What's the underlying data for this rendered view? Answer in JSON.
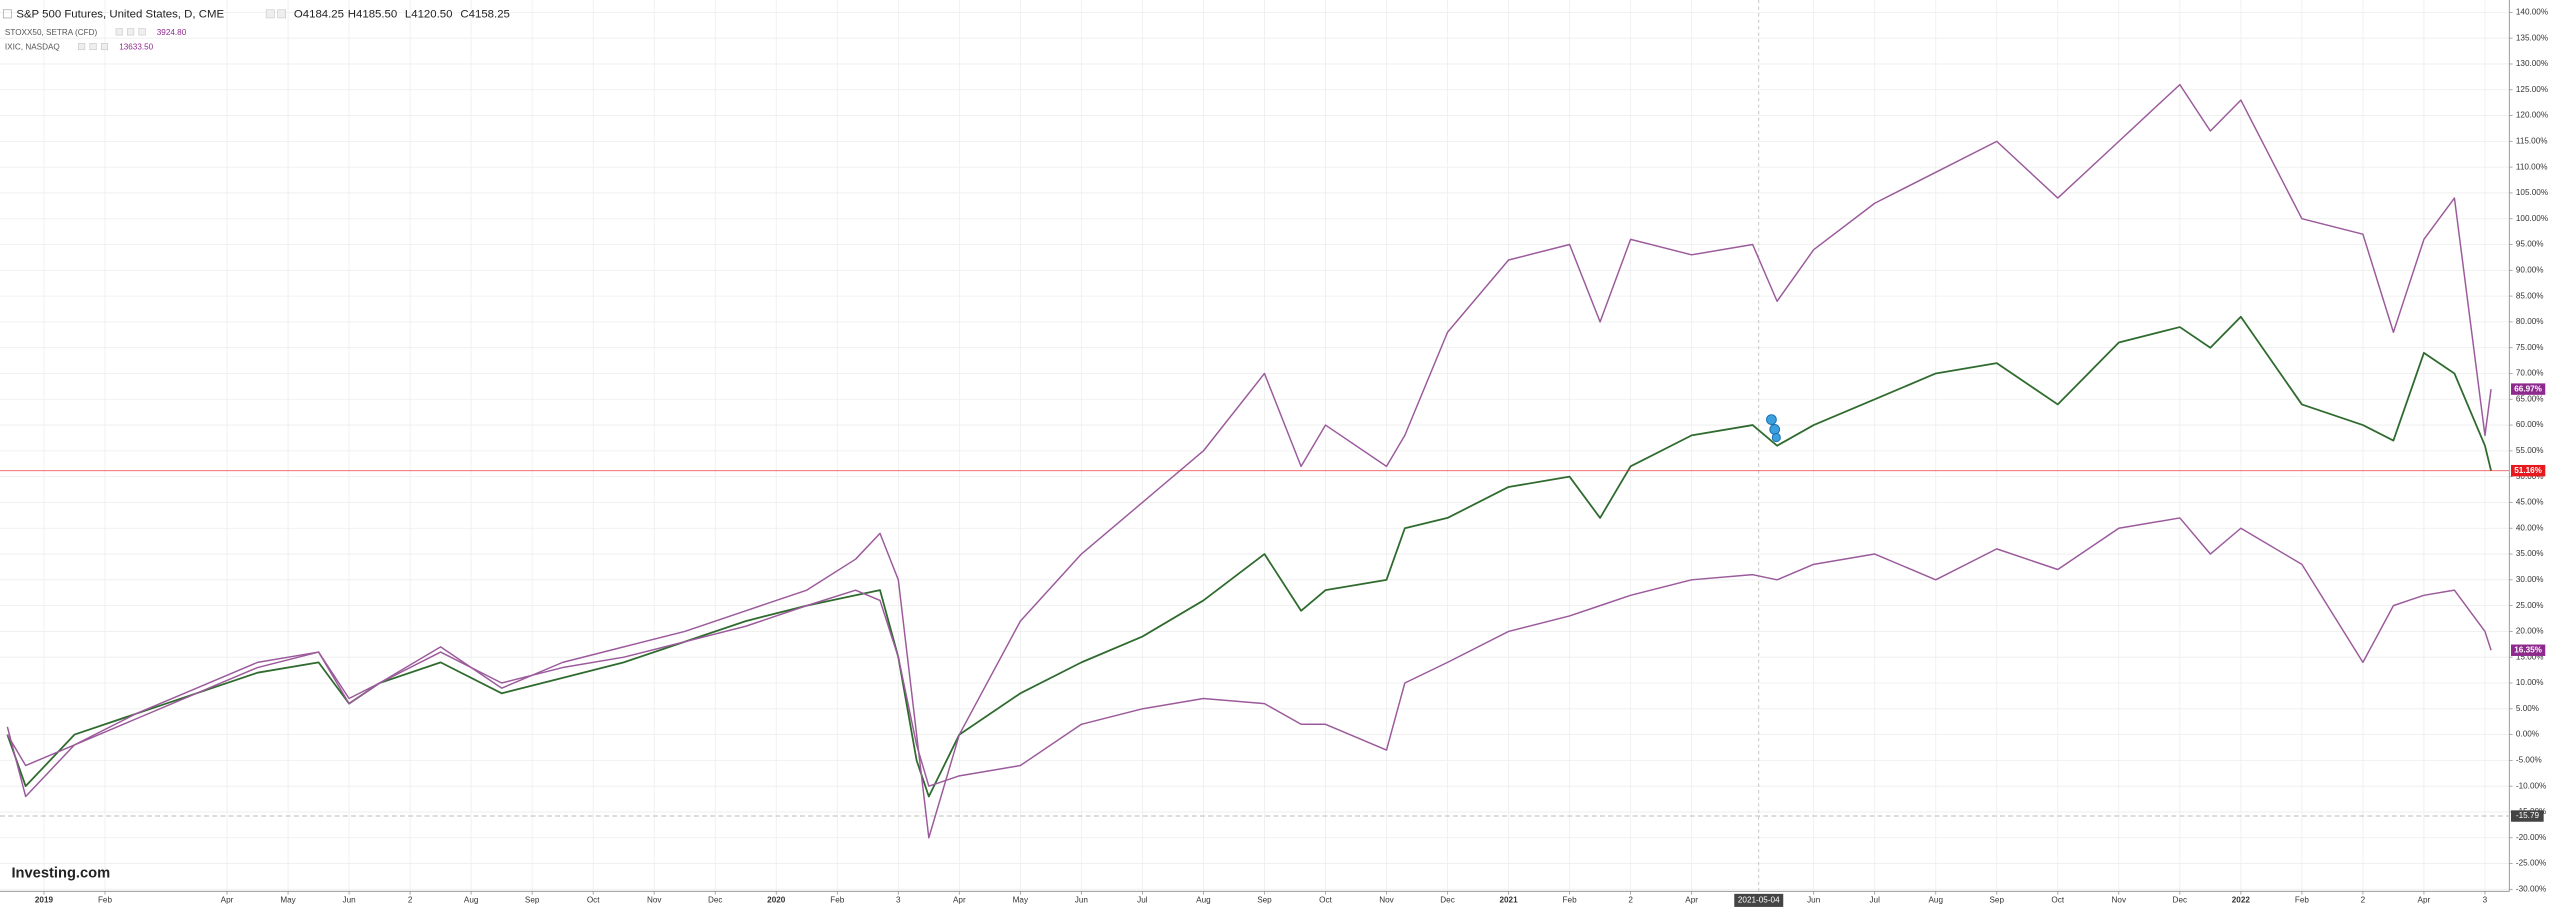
{
  "chart_data": {
    "type": "line",
    "series": [
      {
        "name": "S&P 500 Futures, United States, D, CME",
        "color": "#2f6b2f",
        "values": [
          0,
          -10,
          0,
          4,
          8,
          12,
          14,
          6,
          10,
          14,
          8,
          11,
          14,
          18,
          22,
          25,
          27,
          28,
          15,
          -5,
          -12,
          0,
          8,
          14,
          19,
          26,
          35,
          24,
          28,
          30,
          40,
          42,
          48,
          50,
          42,
          52,
          58,
          60,
          56,
          60,
          65,
          70,
          72,
          64,
          76,
          79,
          75,
          81,
          64,
          60,
          57,
          74,
          70,
          56,
          51.16
        ]
      },
      {
        "name": "STOXX50, SETRA (CFD)",
        "color": "#9b5a9b",
        "values": [
          0,
          -6,
          -2,
          4,
          9,
          14,
          16,
          7,
          10,
          16,
          10,
          13,
          15,
          18,
          21,
          25,
          28,
          26,
          15,
          -2,
          -10,
          -8,
          -6,
          2,
          5,
          7,
          6,
          2,
          2,
          -3,
          10,
          14,
          20,
          23,
          25,
          27,
          30,
          31,
          30,
          33,
          35,
          30,
          36,
          32,
          40,
          42,
          35,
          40,
          33,
          14,
          25,
          27,
          28,
          20,
          16.35
        ]
      },
      {
        "name": "IXIC, NASDAQ",
        "color": "#9b5a9b",
        "values": [
          1.5,
          -12,
          -2,
          3,
          8,
          13,
          16,
          6,
          10,
          17,
          9,
          14,
          17,
          20,
          24,
          28,
          34,
          39,
          30,
          0,
          -20,
          0,
          22,
          35,
          45,
          55,
          70,
          52,
          60,
          52,
          58,
          78,
          92,
          95,
          80,
          96,
          93,
          95,
          84,
          94,
          103,
          109,
          115,
          104,
          115,
          126,
          117,
          123,
          100,
          97,
          78,
          96,
          104,
          58,
          66.97
        ]
      }
    ],
    "x": [
      -0.6,
      -0.3,
      0.5,
      1.5,
      2.5,
      3.5,
      4.5,
      5,
      5.5,
      6.5,
      7.5,
      8.5,
      9.5,
      10.5,
      11.5,
      12.5,
      13.3,
      13.7,
      14.0,
      14.3,
      14.5,
      15,
      16,
      17,
      18,
      19,
      20,
      20.6,
      21,
      22,
      22.3,
      23,
      24,
      25,
      25.5,
      26,
      27,
      28,
      28.4,
      29,
      30,
      31,
      32,
      33,
      34,
      35,
      35.5,
      36,
      37,
      38,
      38.5,
      39,
      39.5,
      40,
      40.1
    ],
    "ohlc": [
      "O4184.25",
      "H4185.50",
      "L4120.50",
      "C4158.25"
    ],
    "last_prices": [
      "3924.80",
      "13633.50"
    ],
    "end_labels": [
      {
        "value": 66.97,
        "label": "66.97%",
        "color": "#8e2a8e"
      },
      {
        "value": 51.16,
        "label": "51.16%",
        "color": "#e8191e"
      },
      {
        "value": 16.35,
        "label": "16.35%",
        "color": "#8e2a8e"
      }
    ],
    "reference_line": {
      "value": -15.79,
      "label": "-15.79"
    },
    "crosshair_x": {
      "value": 28.1,
      "label": "2021-05-04"
    },
    "watermark": "Investing.com",
    "xlim": [
      -0.72,
      40.4
    ],
    "ylim": [
      -30.4,
      142.4
    ],
    "grid": true,
    "xticks": [
      {
        "value": 0,
        "label": "2019"
      },
      {
        "value": 1,
        "label": "Feb"
      },
      {
        "value": 3,
        "label": "Apr"
      },
      {
        "value": 4,
        "label": "May"
      },
      {
        "value": 5,
        "label": "Jun"
      },
      {
        "value": 6,
        "label": "2"
      },
      {
        "value": 7,
        "label": "Aug"
      },
      {
        "value": 8,
        "label": "Sep"
      },
      {
        "value": 9,
        "label": "Oct"
      },
      {
        "value": 10,
        "label": "Nov"
      },
      {
        "value": 11,
        "label": "Dec"
      },
      {
        "value": 12,
        "label": "2020"
      },
      {
        "value": 13,
        "label": "Feb"
      },
      {
        "value": 14,
        "label": "3"
      },
      {
        "value": 15,
        "label": "Apr"
      },
      {
        "value": 16,
        "label": "May"
      },
      {
        "value": 17,
        "label": "Jun"
      },
      {
        "value": 18,
        "label": "Jul"
      },
      {
        "value": 19,
        "label": "Aug"
      },
      {
        "value": 20,
        "label": "Sep"
      },
      {
        "value": 21,
        "label": "Oct"
      },
      {
        "value": 22,
        "label": "Nov"
      },
      {
        "value": 23,
        "label": "Dec"
      },
      {
        "value": 24,
        "label": "2021"
      },
      {
        "value": 25,
        "label": "Feb"
      },
      {
        "value": 26,
        "label": "2"
      },
      {
        "value": 27,
        "label": "Apr"
      },
      {
        "value": 29,
        "label": "Jun"
      },
      {
        "value": 30,
        "label": "Jul"
      },
      {
        "value": 31,
        "label": "Aug"
      },
      {
        "value": 32,
        "label": "Sep"
      },
      {
        "value": 33,
        "label": "Oct"
      },
      {
        "value": 34,
        "label": "Nov"
      },
      {
        "value": 35,
        "label": "Dec"
      },
      {
        "value": 36,
        "label": "2022"
      },
      {
        "value": 37,
        "label": "Feb"
      },
      {
        "value": 38,
        "label": "2"
      },
      {
        "value": 39,
        "label": "Apr"
      },
      {
        "value": 40,
        "label": "3"
      }
    ],
    "yticks": [
      {
        "value": -30,
        "label": "-30.00%"
      },
      {
        "value": -25,
        "label": "-25.00%"
      },
      {
        "value": -20,
        "label": "-20.00%"
      },
      {
        "value": -15,
        "label": "-15.00%"
      },
      {
        "value": -10,
        "label": "-10.00%"
      },
      {
        "value": -5,
        "label": "-5.00%"
      },
      {
        "value": 0,
        "label": "0.00%"
      },
      {
        "value": 5,
        "label": "5.00%"
      },
      {
        "value": 10,
        "label": "10.00%"
      },
      {
        "value": 15,
        "label": "15.00%"
      },
      {
        "value": 20,
        "label": "20.00%"
      },
      {
        "value": 25,
        "label": "25.00%"
      },
      {
        "value": 30,
        "label": "30.00%"
      },
      {
        "value": 35,
        "label": "35.00%"
      },
      {
        "value": 40,
        "label": "40.00%"
      },
      {
        "value": 45,
        "label": "45.00%"
      },
      {
        "value": 50,
        "label": "50.00%"
      },
      {
        "value": 55,
        "label": "55.00%"
      },
      {
        "value": 60,
        "label": "60.00%"
      },
      {
        "value": 65,
        "label": "65.00%"
      },
      {
        "value": 70,
        "label": "70.00%"
      },
      {
        "value": 75,
        "label": "75.00%"
      },
      {
        "value": 80,
        "label": "80.00%"
      },
      {
        "value": 85,
        "label": "85.00%"
      },
      {
        "value": 90,
        "label": "90.00%"
      },
      {
        "value": 95,
        "label": "95.00%"
      },
      {
        "value": 100,
        "label": "100.00%"
      },
      {
        "value": 105,
        "label": "105.00%"
      },
      {
        "value": 110,
        "label": "110.00%"
      },
      {
        "value": 115,
        "label": "115.00%"
      },
      {
        "value": 120,
        "label": "120.00%"
      },
      {
        "value": 125,
        "label": "125.00%"
      },
      {
        "value": 130,
        "label": "130.00%"
      },
      {
        "value": 135,
        "label": "135.00%"
      },
      {
        "value": 140,
        "label": "140.00%"
      }
    ]
  }
}
